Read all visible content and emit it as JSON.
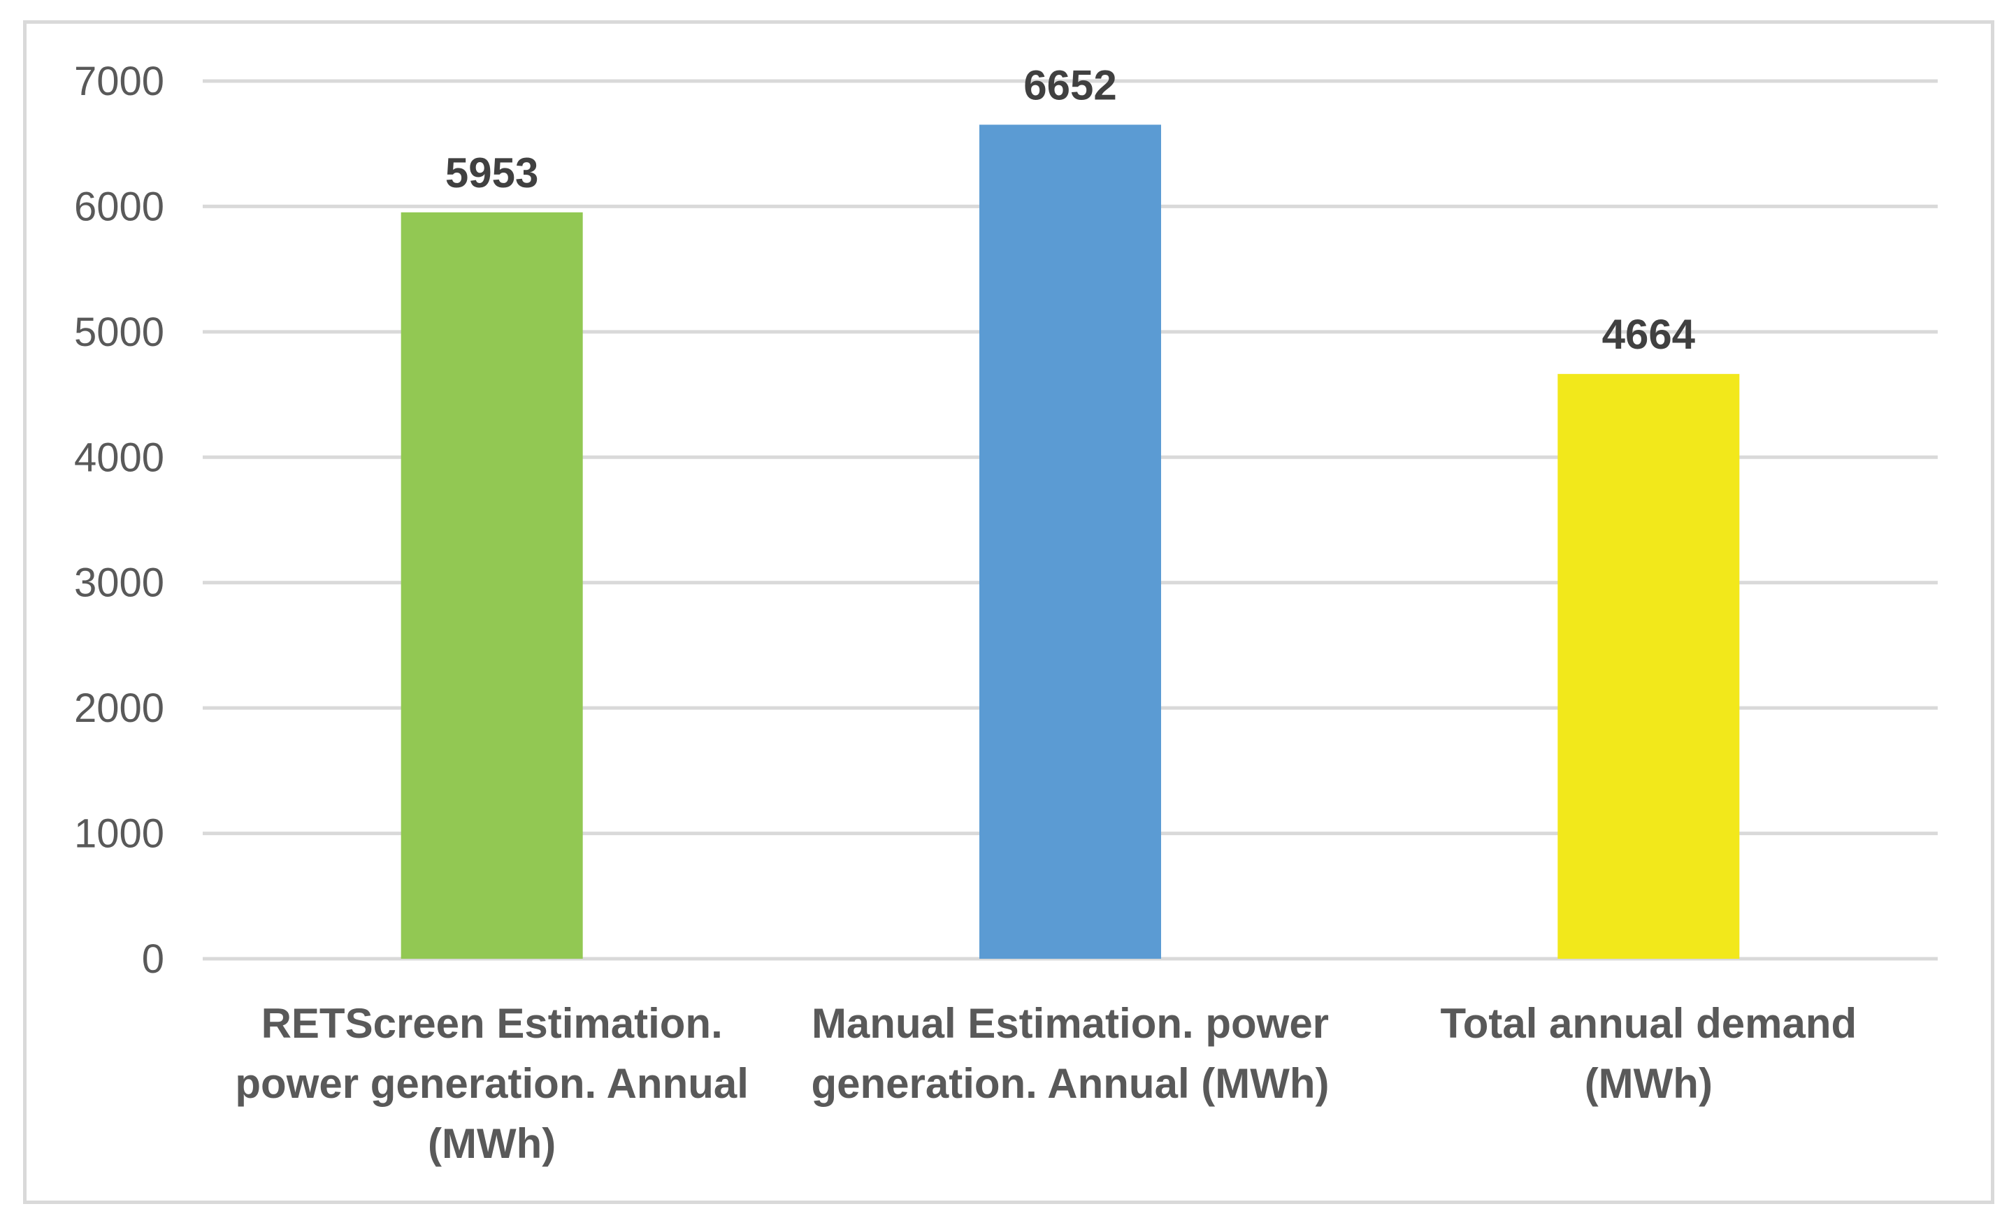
{
  "chart_data": {
    "type": "bar",
    "title": "",
    "xlabel": "",
    "ylabel": "",
    "categories": [
      [
        "RETScreen Estimation.",
        "power generation. Annual",
        "(MWh)"
      ],
      [
        "Manual Estimation. power",
        "generation. Annual (MWh)"
      ],
      [
        "Total annual demand",
        "(MWh)"
      ]
    ],
    "values": [
      5953,
      6652,
      4664
    ],
    "data_labels": [
      "5953",
      "6652",
      "4664"
    ],
    "colors": [
      "#92c853",
      "#5b9bd3",
      "#f2e81b"
    ],
    "ylim": [
      0,
      7000
    ],
    "yticks": [
      0,
      1000,
      2000,
      3000,
      4000,
      5000,
      6000,
      7000
    ],
    "ytick_labels": [
      "0",
      "1000",
      "2000",
      "3000",
      "4000",
      "5000",
      "6000",
      "7000"
    ],
    "grid": true,
    "legend": "none"
  }
}
